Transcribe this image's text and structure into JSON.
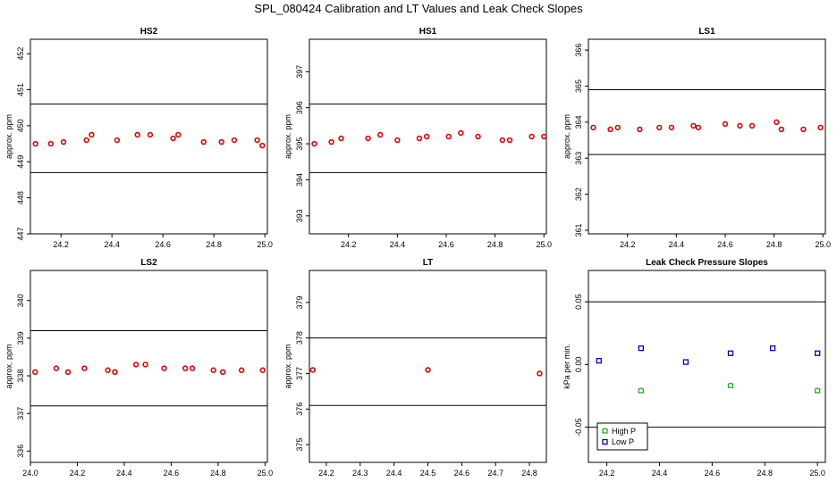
{
  "title": "SPL_080424  Calibration and LT Values and Leak Check Slopes",
  "colors": {
    "high": "#22aa22",
    "low": "#0000cc",
    "point": "#dd0000",
    "axis": "#000000"
  },
  "chart_data": [
    {
      "type": "scatter",
      "title": "HS2",
      "ylabel": "approx. ppm",
      "xlim": [
        24.08,
        25.01
      ],
      "ylim": [
        447,
        452.4
      ],
      "xticks": [
        "24.2",
        "24.4",
        "24.6",
        "24.8",
        "25.0"
      ],
      "yticks": [
        "447",
        "448",
        "449",
        "450",
        "451",
        "452"
      ],
      "hlines": [
        450.6,
        448.7
      ],
      "series": [
        {
          "color": "#dd0000",
          "x": [
            24.1,
            24.16,
            24.21,
            24.3,
            24.32,
            24.42,
            24.5,
            24.55,
            24.64,
            24.66,
            24.76,
            24.83,
            24.88,
            24.97,
            24.99
          ],
          "y": [
            449.5,
            449.5,
            449.55,
            449.6,
            449.75,
            449.6,
            449.75,
            449.75,
            449.65,
            449.75,
            449.55,
            449.55,
            449.6,
            449.6,
            449.45
          ]
        }
      ]
    },
    {
      "type": "scatter",
      "title": "HS1",
      "ylabel": "approx. ppm",
      "xlim": [
        24.04,
        25.01
      ],
      "ylim": [
        392.5,
        397.9
      ],
      "xticks": [
        "24.2",
        "24.4",
        "24.6",
        "24.8",
        "25.0"
      ],
      "yticks": [
        "393",
        "394",
        "395",
        "396",
        "397"
      ],
      "hlines": [
        396.1,
        394.2
      ],
      "series": [
        {
          "color": "#dd0000",
          "x": [
            24.06,
            24.13,
            24.17,
            24.28,
            24.33,
            24.4,
            24.49,
            24.52,
            24.61,
            24.66,
            24.73,
            24.83,
            24.86,
            24.95,
            25.0
          ],
          "y": [
            395.0,
            395.05,
            395.15,
            395.15,
            395.25,
            395.1,
            395.15,
            395.2,
            395.2,
            395.3,
            395.2,
            395.1,
            395.1,
            395.2,
            395.2
          ]
        }
      ]
    },
    {
      "type": "scatter",
      "title": "LS1",
      "ylabel": "approx. ppm",
      "xlim": [
        24.04,
        25.01
      ],
      "ylim": [
        360.9,
        366.3
      ],
      "xticks": [
        "24.2",
        "24.4",
        "24.6",
        "24.8",
        "25.0"
      ],
      "yticks": [
        "361",
        "362",
        "363",
        "364",
        "365",
        "366"
      ],
      "hlines": [
        364.9,
        363.1
      ],
      "series": [
        {
          "color": "#dd0000",
          "x": [
            24.06,
            24.13,
            24.16,
            24.25,
            24.33,
            24.38,
            24.47,
            24.49,
            24.6,
            24.66,
            24.71,
            24.81,
            24.83,
            24.92,
            24.99
          ],
          "y": [
            363.85,
            363.8,
            363.85,
            363.8,
            363.85,
            363.85,
            363.9,
            363.85,
            363.95,
            363.9,
            363.9,
            364.0,
            363.8,
            363.8,
            363.85
          ]
        }
      ]
    },
    {
      "type": "scatter",
      "title": "LS2",
      "ylabel": "approx. ppm",
      "xlim": [
        24.0,
        25.01
      ],
      "ylim": [
        335.7,
        340.8
      ],
      "xticks": [
        "24.0",
        "24.2",
        "24.4",
        "24.6",
        "24.8",
        "25.0"
      ],
      "yticks": [
        "336",
        "337",
        "338",
        "339",
        "340"
      ],
      "hlines": [
        339.2,
        337.2
      ],
      "series": [
        {
          "color": "#dd0000",
          "x": [
            24.02,
            24.11,
            24.16,
            24.23,
            24.33,
            24.36,
            24.45,
            24.49,
            24.57,
            24.66,
            24.69,
            24.78,
            24.82,
            24.9,
            24.99
          ],
          "y": [
            338.1,
            338.2,
            338.1,
            338.2,
            338.15,
            338.1,
            338.3,
            338.3,
            338.2,
            338.2,
            338.2,
            338.15,
            338.1,
            338.15,
            338.15
          ]
        }
      ]
    },
    {
      "type": "scatter",
      "title": "LT",
      "ylabel": "approx. ppm",
      "xlim": [
        24.15,
        24.85
      ],
      "ylim": [
        374.5,
        379.9
      ],
      "xticks": [
        "24.2",
        "24.3",
        "24.4",
        "24.5",
        "24.6",
        "24.7",
        "24.8"
      ],
      "yticks": [
        "375",
        "376",
        "377",
        "378",
        "379"
      ],
      "hlines": [
        378.0,
        376.1
      ],
      "series": [
        {
          "color": "#dd0000",
          "x": [
            24.16,
            24.5,
            24.83
          ],
          "y": [
            377.1,
            377.1,
            377.0
          ]
        }
      ]
    },
    {
      "type": "scatter",
      "title": "Leak Check Pressure Slopes",
      "ylabel": "kPa per min.",
      "xlim": [
        24.13,
        25.03
      ],
      "ylim": [
        -0.078,
        0.075
      ],
      "xticks": [
        "24.2",
        "24.4",
        "24.6",
        "24.8",
        "25.0"
      ],
      "yticks": [
        "-0.05",
        "0.00",
        "0.05"
      ],
      "hlines": [
        0.05,
        -0.05
      ],
      "series": [
        {
          "name": "High P",
          "color": "#22aa22",
          "x": [
            24.33,
            24.67,
            25.0
          ],
          "y": [
            -0.021,
            -0.017,
            -0.021
          ]
        },
        {
          "name": "Low P",
          "color": "#0000cc",
          "x": [
            24.17,
            24.33,
            24.5,
            24.67,
            24.83,
            25.0
          ],
          "y": [
            0.003,
            0.013,
            0.002,
            0.009,
            0.013,
            0.009
          ]
        }
      ],
      "legend": "bottom-left"
    }
  ]
}
